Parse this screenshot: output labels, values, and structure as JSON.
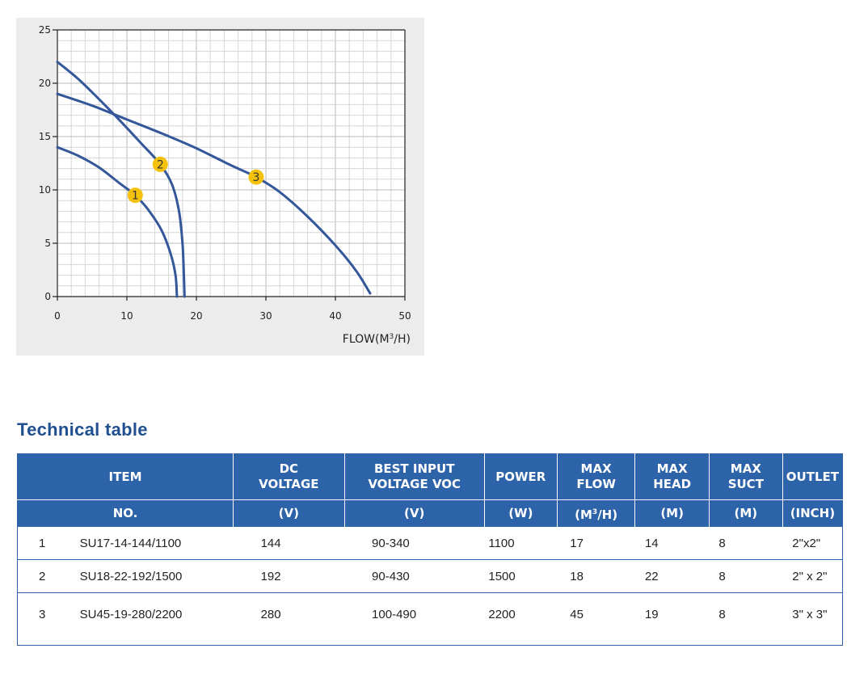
{
  "chart_data": {
    "type": "line",
    "xlabel": "FLOW(M³/H)",
    "ylabel": "",
    "xlim": [
      0,
      50
    ],
    "ylim": [
      0,
      25
    ],
    "x_ticks": [
      0,
      10,
      20,
      30,
      40,
      50
    ],
    "y_ticks": [
      0,
      5,
      10,
      15,
      20,
      25
    ],
    "grid": true,
    "marker_color": "#f4c20d",
    "line_color": "#34579a",
    "series": [
      {
        "name": "1",
        "marker": {
          "x": 11.2,
          "y": 9.5
        },
        "points": [
          [
            0,
            14
          ],
          [
            3,
            13.2
          ],
          [
            6,
            12.1
          ],
          [
            9,
            10.6
          ],
          [
            11.2,
            9.5
          ],
          [
            13,
            8.2
          ],
          [
            15,
            6.2
          ],
          [
            16.3,
            4
          ],
          [
            17,
            2
          ],
          [
            17.2,
            0
          ]
        ]
      },
      {
        "name": "2",
        "marker": {
          "x": 14.8,
          "y": 12.4
        },
        "points": [
          [
            0,
            22
          ],
          [
            3,
            20.4
          ],
          [
            6,
            18.5
          ],
          [
            9,
            16.5
          ],
          [
            12,
            14.4
          ],
          [
            14.8,
            12.4
          ],
          [
            16.5,
            10.5
          ],
          [
            17.5,
            8
          ],
          [
            18,
            5
          ],
          [
            18.2,
            2
          ],
          [
            18.3,
            0
          ]
        ]
      },
      {
        "name": "3",
        "marker": {
          "x": 28.6,
          "y": 11.2
        },
        "points": [
          [
            0,
            19
          ],
          [
            5,
            17.9
          ],
          [
            10,
            16.6
          ],
          [
            15,
            15.3
          ],
          [
            20,
            13.9
          ],
          [
            25,
            12.3
          ],
          [
            28.6,
            11.2
          ],
          [
            32,
            9.8
          ],
          [
            36,
            7.5
          ],
          [
            40,
            4.8
          ],
          [
            43,
            2.4
          ],
          [
            45,
            0.3
          ]
        ]
      }
    ]
  },
  "section_title": "Technical table",
  "table": {
    "head1": [
      "ITEM",
      "DC VOLTAGE",
      "BEST INPUT VOLTAGE VOC",
      "POWER",
      "MAX FLOW",
      "MAX HEAD",
      "MAX SUCT",
      "OUTLET"
    ],
    "head1_lines": {
      "dc": [
        "DC",
        "VOLTAGE"
      ],
      "best": [
        "BEST INPUT",
        "VOLTAGE VOC"
      ],
      "flow": [
        "MAX",
        "FLOW"
      ],
      "head": [
        "MAX",
        "HEAD"
      ],
      "suct": [
        "MAX",
        "SUCT"
      ]
    },
    "head2": {
      "no": "NO.",
      "dc": "(V)",
      "best": "(V)",
      "power": "(W)",
      "flow_pre": "(M",
      "flow_sup": "3",
      "flow_post": "/H)",
      "head": "(M)",
      "suct": "(M)",
      "outlet": "(INCH)"
    },
    "rows": [
      {
        "no": "1",
        "item": "SU17-14-144/1100",
        "dc": "144",
        "best": "90-340",
        "power": "1100",
        "flow": "17",
        "head": "14",
        "suct": "8",
        "outlet": "2\"x2\""
      },
      {
        "no": "2",
        "item": "SU18-22-192/1500",
        "dc": "192",
        "best": "90-430",
        "power": "1500",
        "flow": "18",
        "head": "22",
        "suct": "8",
        "outlet": "2\" x 2\""
      },
      {
        "no": "3",
        "item": "SU45-19-280/2200",
        "dc": "280",
        "best": "100-490",
        "power": "2200",
        "flow": "45",
        "head": "19",
        "suct": "8",
        "outlet": "3\" x 3\""
      }
    ]
  }
}
